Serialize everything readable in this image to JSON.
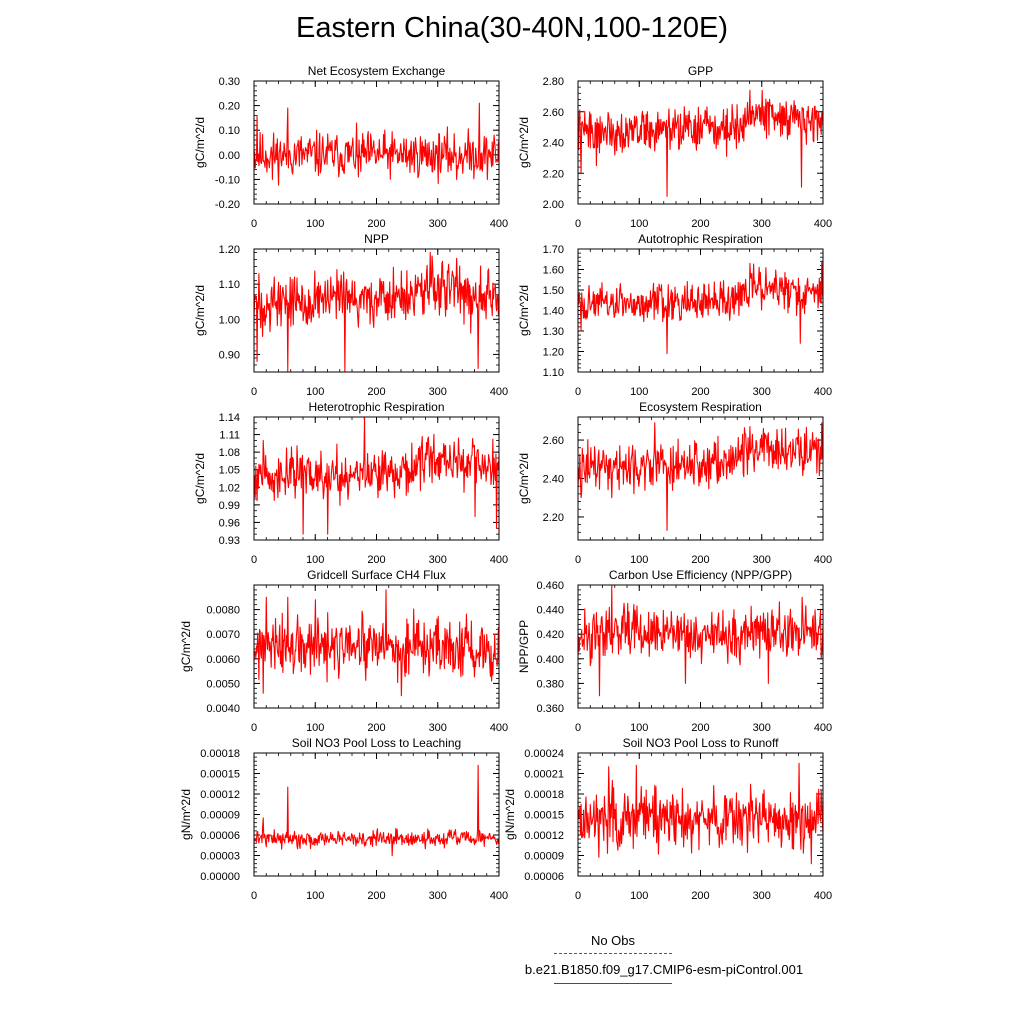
{
  "page_title": "Eastern China(30-40N,100-120E)",
  "legend": {
    "obs_label": "No Obs",
    "obs_color": "#4a4ad6",
    "model_label": "b.e21.B1850.f09_g17.CMIP6-esm-piControl.001",
    "model_color": "#ff0000"
  },
  "chart_data": [
    {
      "id": "nee",
      "type": "line",
      "title": "Net Ecosystem Exchange",
      "ylabel": "gC/m^2/d",
      "xlim": [
        0,
        400
      ],
      "xticks": [
        "0",
        "100",
        "200",
        "300",
        "400"
      ],
      "ylim": [
        -0.2,
        0.3
      ],
      "yticks": [
        -0.2,
        -0.1,
        0.0,
        0.1,
        0.2,
        0.3
      ],
      "ytick_labels": [
        "-0.20",
        "-0.10",
        "0.00",
        "0.10",
        "0.20",
        "0.30"
      ],
      "yminor": 0.02,
      "series": {
        "name": "b.e21.B1850.f09_g17.CMIP6-esm-piControl.001",
        "n": 400,
        "mean": 0.0,
        "amp": 0.045,
        "trend": [],
        "spikes": [
          [
            5,
            0.16
          ],
          [
            55,
            0.19
          ],
          [
            367,
            0.21
          ],
          [
            30,
            -0.1
          ],
          [
            170,
            -0.09
          ],
          [
            330,
            -0.1
          ]
        ],
        "seed": 11
      }
    },
    {
      "id": "gpp",
      "type": "line",
      "title": "GPP",
      "ylabel": "gC/m^2/d",
      "xlim": [
        0,
        400
      ],
      "xticks": [
        "0",
        "100",
        "200",
        "300",
        "400"
      ],
      "ylim": [
        2.0,
        2.8
      ],
      "yticks": [
        2.0,
        2.2,
        2.4,
        2.6,
        2.8
      ],
      "ytick_labels": [
        "2.00",
        "2.20",
        "2.40",
        "2.60",
        "2.80"
      ],
      "yminor": 0.04,
      "series": {
        "name": "b.e21.B1850.f09_g17.CMIP6-esm-piControl.001",
        "n": 400,
        "mean": 2.5,
        "amp": 0.07,
        "trend": [
          [
            0,
            2.48
          ],
          [
            250,
            2.49
          ],
          [
            285,
            2.59
          ],
          [
            400,
            2.54
          ]
        ],
        "spikes": [
          [
            145,
            2.05
          ],
          [
            364,
            2.11
          ],
          [
            280,
            2.74
          ],
          [
            5,
            2.2
          ],
          [
            30,
            2.25
          ]
        ],
        "seed": 22
      }
    },
    {
      "id": "npp",
      "type": "line",
      "title": "NPP",
      "ylabel": "gC/m^2/d",
      "xlim": [
        0,
        400
      ],
      "xticks": [
        "0",
        "100",
        "200",
        "300",
        "400"
      ],
      "ylim": [
        0.85,
        1.2
      ],
      "yticks": [
        0.9,
        1.0,
        1.1,
        1.2
      ],
      "ytick_labels": [
        "0.90",
        "1.00",
        "1.10",
        "1.20"
      ],
      "yminor": 0.02,
      "series": {
        "name": "b.e21.B1850.f09_g17.CMIP6-esm-piControl.001",
        "n": 400,
        "mean": 1.06,
        "amp": 0.04,
        "trend": [
          [
            0,
            1.05
          ],
          [
            250,
            1.06
          ],
          [
            285,
            1.09
          ],
          [
            400,
            1.07
          ]
        ],
        "spikes": [
          [
            55,
            0.85
          ],
          [
            148,
            0.85
          ],
          [
            365,
            0.86
          ],
          [
            5,
            0.88
          ],
          [
            290,
            1.18
          ]
        ],
        "seed": 33
      }
    },
    {
      "id": "ar",
      "type": "line",
      "title": "Autotrophic Respiration",
      "ylabel": "gC/m^2/d",
      "xlim": [
        0,
        400
      ],
      "xticks": [
        "0",
        "100",
        "200",
        "300",
        "400"
      ],
      "ylim": [
        1.1,
        1.7
      ],
      "yticks": [
        1.1,
        1.2,
        1.3,
        1.4,
        1.5,
        1.6,
        1.7
      ],
      "ytick_labels": [
        "1.10",
        "1.20",
        "1.30",
        "1.40",
        "1.50",
        "1.60",
        "1.70"
      ],
      "yminor": 0.02,
      "series": {
        "name": "b.e21.B1850.f09_g17.CMIP6-esm-piControl.001",
        "n": 400,
        "mean": 1.44,
        "amp": 0.045,
        "trend": [
          [
            0,
            1.43
          ],
          [
            250,
            1.44
          ],
          [
            285,
            1.52
          ],
          [
            400,
            1.47
          ]
        ],
        "spikes": [
          [
            145,
            1.19
          ],
          [
            362,
            1.24
          ],
          [
            280,
            1.63
          ],
          [
            397,
            1.64
          ],
          [
            5,
            1.3
          ]
        ],
        "seed": 44
      }
    },
    {
      "id": "hr",
      "type": "line",
      "title": "Heterotrophic Respiration",
      "ylabel": "gC/m^2/d",
      "xlim": [
        0,
        400
      ],
      "xticks": [
        "0",
        "100",
        "200",
        "300",
        "400"
      ],
      "ylim": [
        0.93,
        1.14
      ],
      "yticks": [
        0.93,
        0.96,
        0.99,
        1.02,
        1.05,
        1.08,
        1.11,
        1.14
      ],
      "ytick_labels": [
        "0.93",
        "0.96",
        "0.99",
        "1.02",
        "1.05",
        "1.08",
        "1.11",
        "1.14"
      ],
      "yminor": 0.01,
      "series": {
        "name": "b.e21.B1850.f09_g17.CMIP6-esm-piControl.001",
        "n": 400,
        "mean": 1.04,
        "amp": 0.02,
        "trend": [
          [
            0,
            1.04
          ],
          [
            250,
            1.045
          ],
          [
            280,
            1.07
          ],
          [
            400,
            1.05
          ]
        ],
        "spikes": [
          [
            180,
            1.14
          ],
          [
            120,
            0.94
          ],
          [
            80,
            0.94
          ],
          [
            395,
            0.95
          ],
          [
            15,
            1.1
          ],
          [
            360,
            0.97
          ]
        ],
        "seed": 55
      }
    },
    {
      "id": "er",
      "type": "line",
      "title": "Ecosystem Respiration",
      "ylabel": "gC/m^2/d",
      "xlim": [
        0,
        400
      ],
      "xticks": [
        "0",
        "100",
        "200",
        "300",
        "400"
      ],
      "ylim": [
        2.08,
        2.72
      ],
      "yticks": [
        2.2,
        2.4,
        2.6
      ],
      "ytick_labels": [
        "2.20",
        "2.40",
        "2.60"
      ],
      "yminor": 0.04,
      "series": {
        "name": "b.e21.B1850.f09_g17.CMIP6-esm-piControl.001",
        "n": 400,
        "mean": 2.48,
        "amp": 0.06,
        "trend": [
          [
            0,
            2.46
          ],
          [
            250,
            2.48
          ],
          [
            285,
            2.58
          ],
          [
            400,
            2.52
          ]
        ],
        "spikes": [
          [
            145,
            2.13
          ],
          [
            125,
            2.69
          ],
          [
            280,
            2.67
          ],
          [
            397,
            2.69
          ],
          [
            5,
            2.3
          ]
        ],
        "seed": 66
      }
    },
    {
      "id": "ch4",
      "type": "line",
      "title": "Gridcell Surface CH4 Flux",
      "ylabel": "gC/m^2/d",
      "xlim": [
        0,
        400
      ],
      "xticks": [
        "0",
        "100",
        "200",
        "300",
        "400"
      ],
      "ylim": [
        0.004,
        0.009
      ],
      "yticks": [
        0.004,
        0.005,
        0.006,
        0.007,
        0.008
      ],
      "ytick_labels": [
        "0.0040",
        "0.0050",
        "0.0060",
        "0.0070",
        "0.0080"
      ],
      "yminor": 0.0002,
      "series": {
        "name": "b.e21.B1850.f09_g17.CMIP6-esm-piControl.001",
        "n": 400,
        "mean": 0.0064,
        "amp": 0.0006,
        "trend": [],
        "spikes": [
          [
            215,
            0.0088
          ],
          [
            20,
            0.0085
          ],
          [
            100,
            0.0084
          ],
          [
            240,
            0.0045
          ],
          [
            15,
            0.0046
          ],
          [
            55,
            0.0085
          ]
        ],
        "seed": 77
      }
    },
    {
      "id": "cue",
      "type": "line",
      "title": "Carbon Use Efficiency (NPP/GPP)",
      "ylabel": "NPP/GPP",
      "xlim": [
        0,
        400
      ],
      "xticks": [
        "0",
        "100",
        "200",
        "300",
        "400"
      ],
      "ylim": [
        0.36,
        0.46
      ],
      "yticks": [
        0.36,
        0.38,
        0.4,
        0.42,
        0.44,
        0.46
      ],
      "ytick_labels": [
        "0.360",
        "0.380",
        "0.400",
        "0.420",
        "0.440",
        "0.460"
      ],
      "yminor": 0.004,
      "series": {
        "name": "b.e21.B1850.f09_g17.CMIP6-esm-piControl.001",
        "n": 400,
        "mean": 0.42,
        "amp": 0.01,
        "trend": [],
        "spikes": [
          [
            55,
            0.46
          ],
          [
            35,
            0.37
          ],
          [
            175,
            0.38
          ],
          [
            310,
            0.38
          ],
          [
            365,
            0.45
          ]
        ],
        "seed": 88
      }
    },
    {
      "id": "leach",
      "type": "line",
      "title": "Soil NO3 Pool Loss to Leaching",
      "ylabel": "gN/m^2/d",
      "xlim": [
        0,
        400
      ],
      "xticks": [
        "0",
        "100",
        "200",
        "300",
        "400"
      ],
      "ylim": [
        0,
        0.00018
      ],
      "yticks": [
        0,
        3e-05,
        6e-05,
        9e-05,
        0.00012,
        0.00015,
        0.00018
      ],
      "ytick_labels": [
        "0.00000",
        "0.00003",
        "0.00006",
        "0.00009",
        "0.00012",
        "0.00015",
        "0.00018"
      ],
      "yminor": 6e-06,
      "series": {
        "name": "b.e21.B1850.f09_g17.CMIP6-esm-piControl.001",
        "n": 400,
        "mean": 5.5e-05,
        "amp": 6e-06,
        "trend": [],
        "spikes": [
          [
            365,
            0.000162
          ],
          [
            55,
            0.00013
          ],
          [
            15,
            8.5e-05
          ],
          [
            225,
            3e-05
          ]
        ],
        "seed": 99
      }
    },
    {
      "id": "runoff",
      "type": "line",
      "title": "Soil NO3 Pool Loss to Runoff",
      "ylabel": "gN/m^2/d",
      "xlim": [
        0,
        400
      ],
      "xticks": [
        "0",
        "100",
        "200",
        "300",
        "400"
      ],
      "ylim": [
        6e-05,
        0.00024
      ],
      "yticks": [
        6e-05,
        9e-05,
        0.00012,
        0.00015,
        0.00018,
        0.00021,
        0.00024
      ],
      "ytick_labels": [
        "0.00006",
        "0.00009",
        "0.00012",
        "0.00015",
        "0.00018",
        "0.00021",
        "0.00024"
      ],
      "yminor": 6e-06,
      "series": {
        "name": "b.e21.B1850.f09_g17.CMIP6-esm-piControl.001",
        "n": 400,
        "mean": 0.000145,
        "amp": 2.2e-05,
        "trend": [],
        "spikes": [
          [
            360,
            0.000225
          ],
          [
            95,
            0.000222
          ],
          [
            380,
            7.8e-05
          ],
          [
            50,
            0.00022
          ]
        ],
        "seed": 111
      }
    }
  ]
}
